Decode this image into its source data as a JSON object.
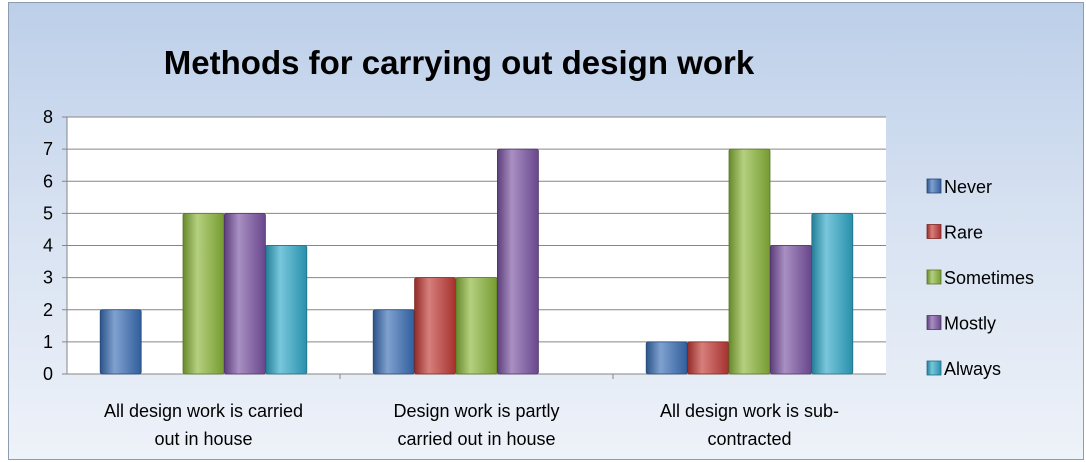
{
  "chart_data": {
    "type": "bar",
    "title": "Methods for carrying out design work",
    "xlabel": "",
    "ylabel": "",
    "ylim": [
      0,
      8
    ],
    "yticks": [
      0,
      1,
      2,
      3,
      4,
      5,
      6,
      7,
      8
    ],
    "grid": true,
    "legend_position": "right",
    "categories": [
      [
        "All design work is carried",
        "out in house"
      ],
      [
        "Design work is partly",
        "carried out in house"
      ],
      [
        "All design work is sub-",
        "contracted"
      ]
    ],
    "series": [
      {
        "name": "Never",
        "color": "#3a6fb7",
        "values": [
          2,
          2,
          1
        ]
      },
      {
        "name": "Rare",
        "color": "#c23a36",
        "values": [
          0,
          3,
          1
        ]
      },
      {
        "name": "Sometimes",
        "color": "#8bb63a",
        "values": [
          5,
          3,
          7
        ]
      },
      {
        "name": "Mostly",
        "color": "#7a52a3",
        "values": [
          5,
          7,
          4
        ]
      },
      {
        "name": "Always",
        "color": "#2fa9c9",
        "values": [
          4,
          0,
          5
        ]
      }
    ]
  }
}
